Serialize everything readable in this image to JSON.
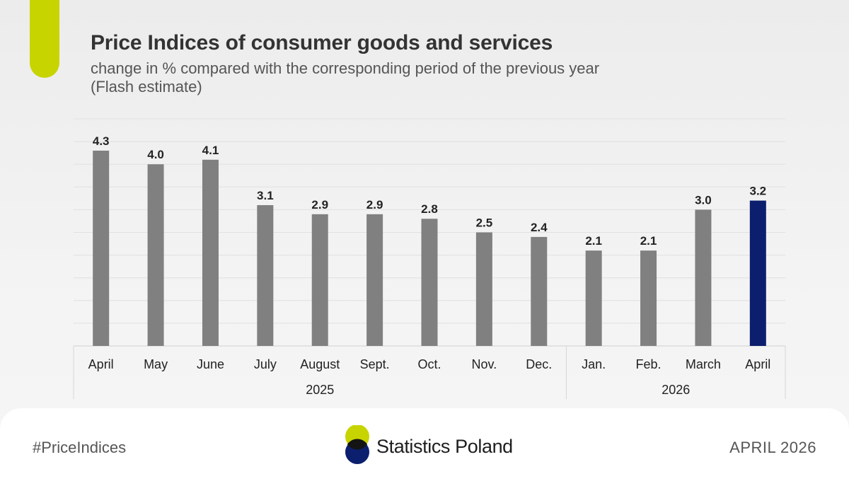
{
  "header": {
    "title": "Price Indices of consumer goods and services",
    "subtitle_line1": "change in % compared with the corresponding period of the previous year",
    "subtitle_line2": "(Flash estimate)"
  },
  "chart_data": {
    "type": "bar",
    "title": "Price Indices of consumer goods and services",
    "subtitle": "change in % compared with the corresponding period of the previous year (Flash estimate)",
    "categories": [
      "April",
      "May",
      "June",
      "July",
      "August",
      "Sept.",
      "Oct.",
      "Nov.",
      "Dec.",
      "Jan.",
      "Feb.",
      "March",
      "April"
    ],
    "values": [
      4.3,
      4.0,
      4.1,
      3.1,
      2.9,
      2.9,
      2.8,
      2.5,
      2.4,
      2.1,
      2.1,
      3.0,
      3.2
    ],
    "value_labels": [
      "4.3",
      "4.0",
      "4.1",
      "3.1",
      "2.9",
      "2.9",
      "2.8",
      "2.5",
      "2.4",
      "2.1",
      "2.1",
      "3.0",
      "3.2"
    ],
    "year_groups": [
      {
        "label": "2025",
        "count": 9
      },
      {
        "label": "2026",
        "count": 4
      }
    ],
    "highlight_index": 12,
    "ylim": [
      0,
      5
    ],
    "grid": true,
    "colors": {
      "bar": "#808080",
      "highlight": "#0c1f6e"
    }
  },
  "footer": {
    "hashtag": "#PriceIndices",
    "logo_text": "Statistics Poland",
    "date": "APRIL 2026"
  },
  "colors": {
    "accent": "#c8d400",
    "logo_green": "#c8d400",
    "logo_navy": "#0c1f6e"
  }
}
